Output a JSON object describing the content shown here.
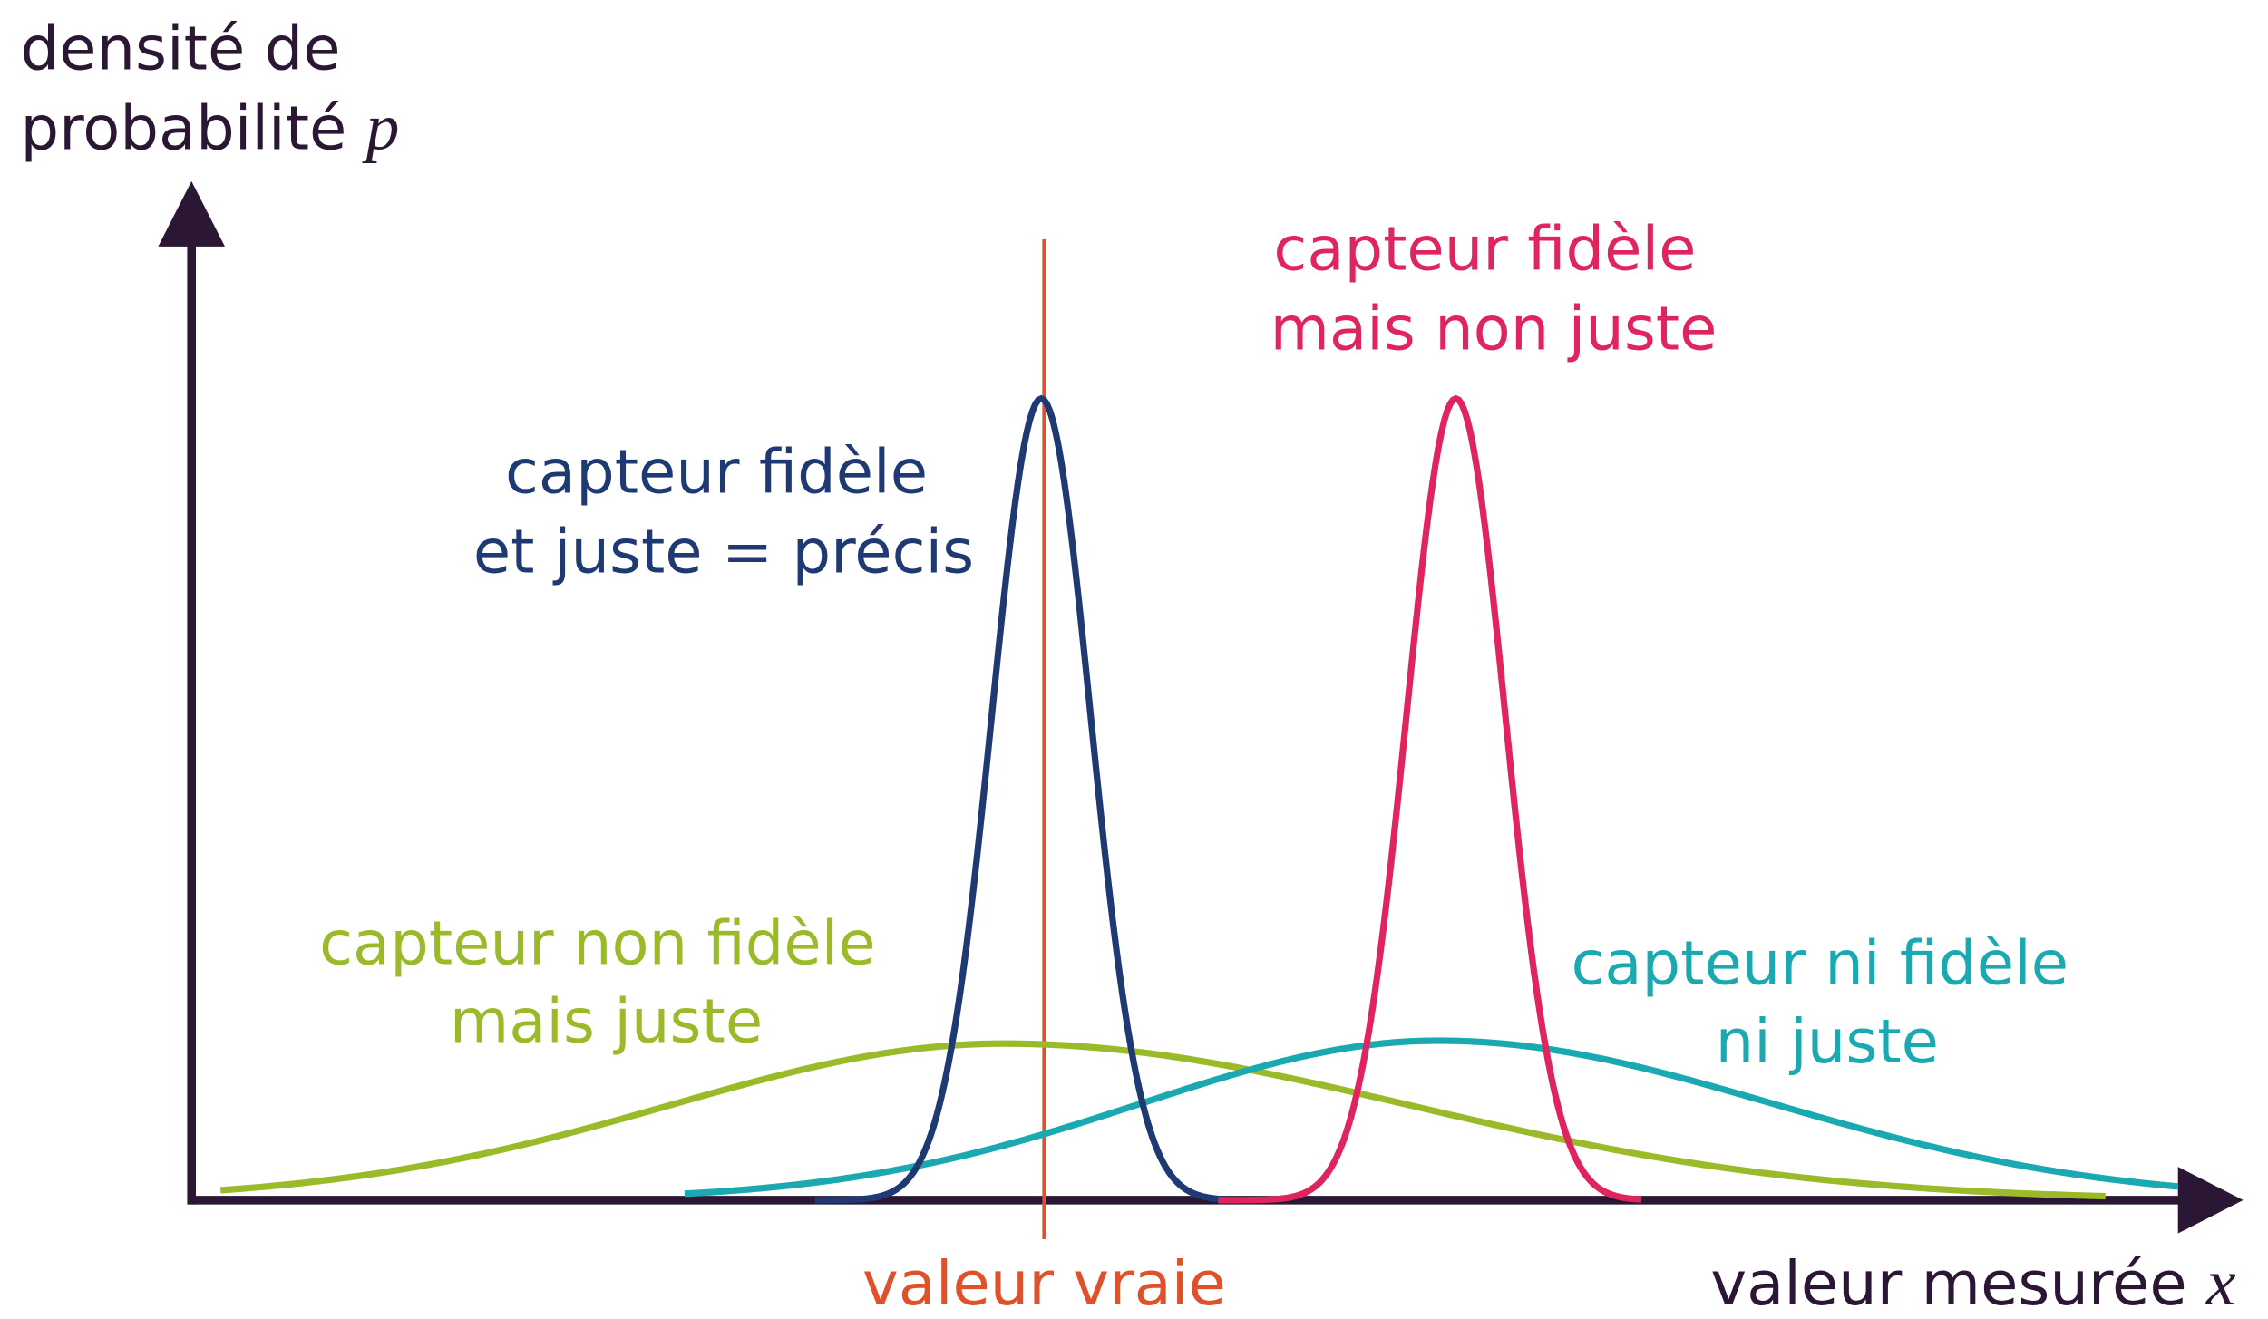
{
  "y_axis": {
    "label": [
      "densité de",
      "probabilité"
    ],
    "symbol": "p"
  },
  "x_axis": {
    "label": "valeur mesurée",
    "symbol": "x"
  },
  "reference": {
    "label": "valeur vraie"
  },
  "curves": [
    {
      "label": [
        "capteur fidèle",
        "et juste = précis"
      ]
    },
    {
      "label": [
        "capteur fidèle",
        "mais non juste"
      ]
    },
    {
      "label": [
        "capteur non fidèle",
        "mais juste"
      ]
    },
    {
      "label": [
        "capteur ni fidèle",
        "ni juste"
      ]
    }
  ]
}
